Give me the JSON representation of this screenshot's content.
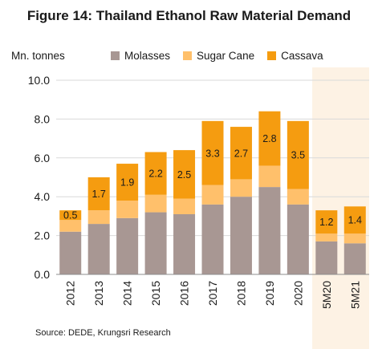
{
  "title": "Figure 14: Thailand Ethanol Raw Material Demand",
  "footer": {
    "source": "Source: DEDE, Krungsri Research"
  },
  "colors": {
    "molasses": "#A89793",
    "sugar_cane": "#FFC06B",
    "cassava": "#F59C10",
    "shade": "#FDF2E4",
    "grid": "#D9D9D9",
    "axis": "#8C8C8C"
  },
  "chart_data": {
    "type": "bar",
    "stacked": true,
    "y_unit_label": "Mn. tonnes",
    "categories": [
      "2012",
      "2013",
      "2014",
      "2015",
      "2016",
      "2017",
      "2018",
      "2019",
      "2020",
      "5M20",
      "5M21"
    ],
    "series": [
      {
        "name": "Molasses",
        "values": [
          2.2,
          2.6,
          2.9,
          3.2,
          3.1,
          3.6,
          4.0,
          4.5,
          3.6,
          1.7,
          1.6
        ]
      },
      {
        "name": "Sugar Cane",
        "values": [
          0.6,
          0.7,
          0.9,
          0.9,
          0.8,
          1.0,
          0.9,
          1.1,
          0.8,
          0.4,
          0.5
        ]
      },
      {
        "name": "Cassava",
        "values": [
          0.5,
          1.7,
          1.9,
          2.2,
          2.5,
          3.3,
          2.7,
          2.8,
          3.5,
          1.2,
          1.4
        ]
      }
    ],
    "data_labels": [
      "0.5",
      "1.7",
      "1.9",
      "2.2",
      "2.5",
      "3.3",
      "2.7",
      "2.8",
      "3.5",
      "1.2",
      "1.4"
    ],
    "y_ticks": [
      "0.0",
      "2.0",
      "4.0",
      "6.0",
      "8.0",
      "10.0"
    ],
    "ylim": [
      0,
      10
    ],
    "grid": true,
    "legend_position": "top",
    "highlight_categories": [
      "5M20",
      "5M21"
    ]
  }
}
